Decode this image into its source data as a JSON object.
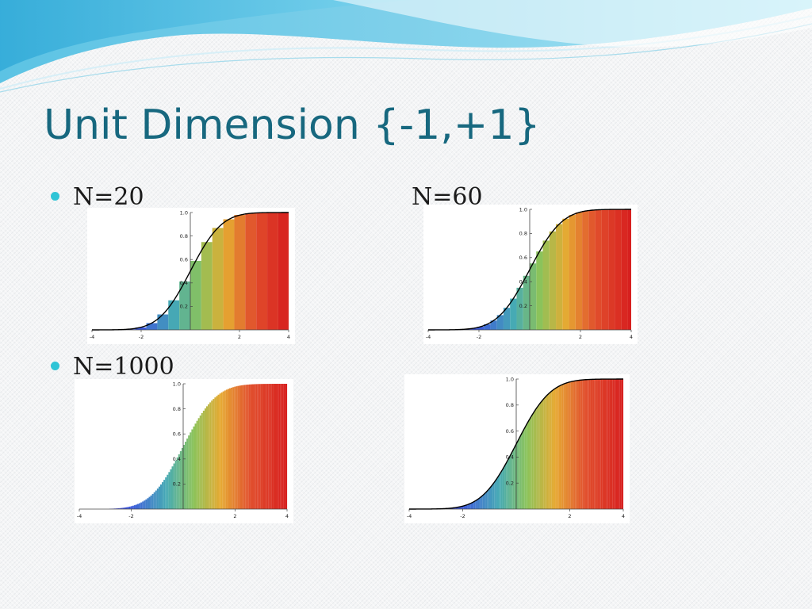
{
  "slide": {
    "title": "Unit Dimension {-1,+1}"
  },
  "labels": {
    "n20": "N=20",
    "n60": "N=60",
    "n1000": "N=1000"
  },
  "colors": {
    "title": "#17687f",
    "bullet": "#2ec4d6",
    "curve": "#000000"
  },
  "chart_data": [
    {
      "type": "area",
      "panel": "N=20",
      "bins": 20,
      "xlim": [
        -4,
        4
      ],
      "ylim": [
        0,
        1
      ],
      "x_ticks": [
        "-4",
        "-2",
        "2",
        "4"
      ],
      "y_ticks": [
        "0.2",
        "0.4",
        "0.6",
        "0.8",
        "1.0"
      ],
      "series": [
        {
          "kind": "histogram-cdf"
        },
        {
          "kind": "normal-cdf-curve"
        }
      ]
    },
    {
      "type": "area",
      "panel": "N=60",
      "bins": 60,
      "xlim": [
        -4,
        4
      ],
      "ylim": [
        0,
        1
      ],
      "x_ticks": [
        "-4",
        "-2",
        "2",
        "4"
      ],
      "y_ticks": [
        "0.2",
        "0.4",
        "0.6",
        "0.8",
        "1.0"
      ],
      "series": [
        {
          "kind": "histogram-cdf"
        },
        {
          "kind": "normal-cdf-curve"
        }
      ]
    },
    {
      "type": "area",
      "panel": "N=1000",
      "bins": 1000,
      "xlim": [
        -4,
        4
      ],
      "ylim": [
        0,
        1
      ],
      "x_ticks": [
        "-4",
        "-2",
        "2",
        "4"
      ],
      "y_ticks": [
        "0.2",
        "0.4",
        "0.6",
        "0.8",
        "1.0"
      ],
      "series": [
        {
          "kind": "histogram-cdf"
        }
      ]
    },
    {
      "type": "area",
      "panel": "N=1000",
      "bins": 1000,
      "xlim": [
        -4,
        4
      ],
      "ylim": [
        0,
        1
      ],
      "x_ticks": [
        "-4",
        "-2",
        "2",
        "4"
      ],
      "y_ticks": [
        "0.2",
        "0.4",
        "0.6",
        "0.8",
        "1.0"
      ],
      "series": [
        {
          "kind": "histogram-cdf"
        },
        {
          "kind": "normal-cdf-curve"
        }
      ]
    }
  ]
}
